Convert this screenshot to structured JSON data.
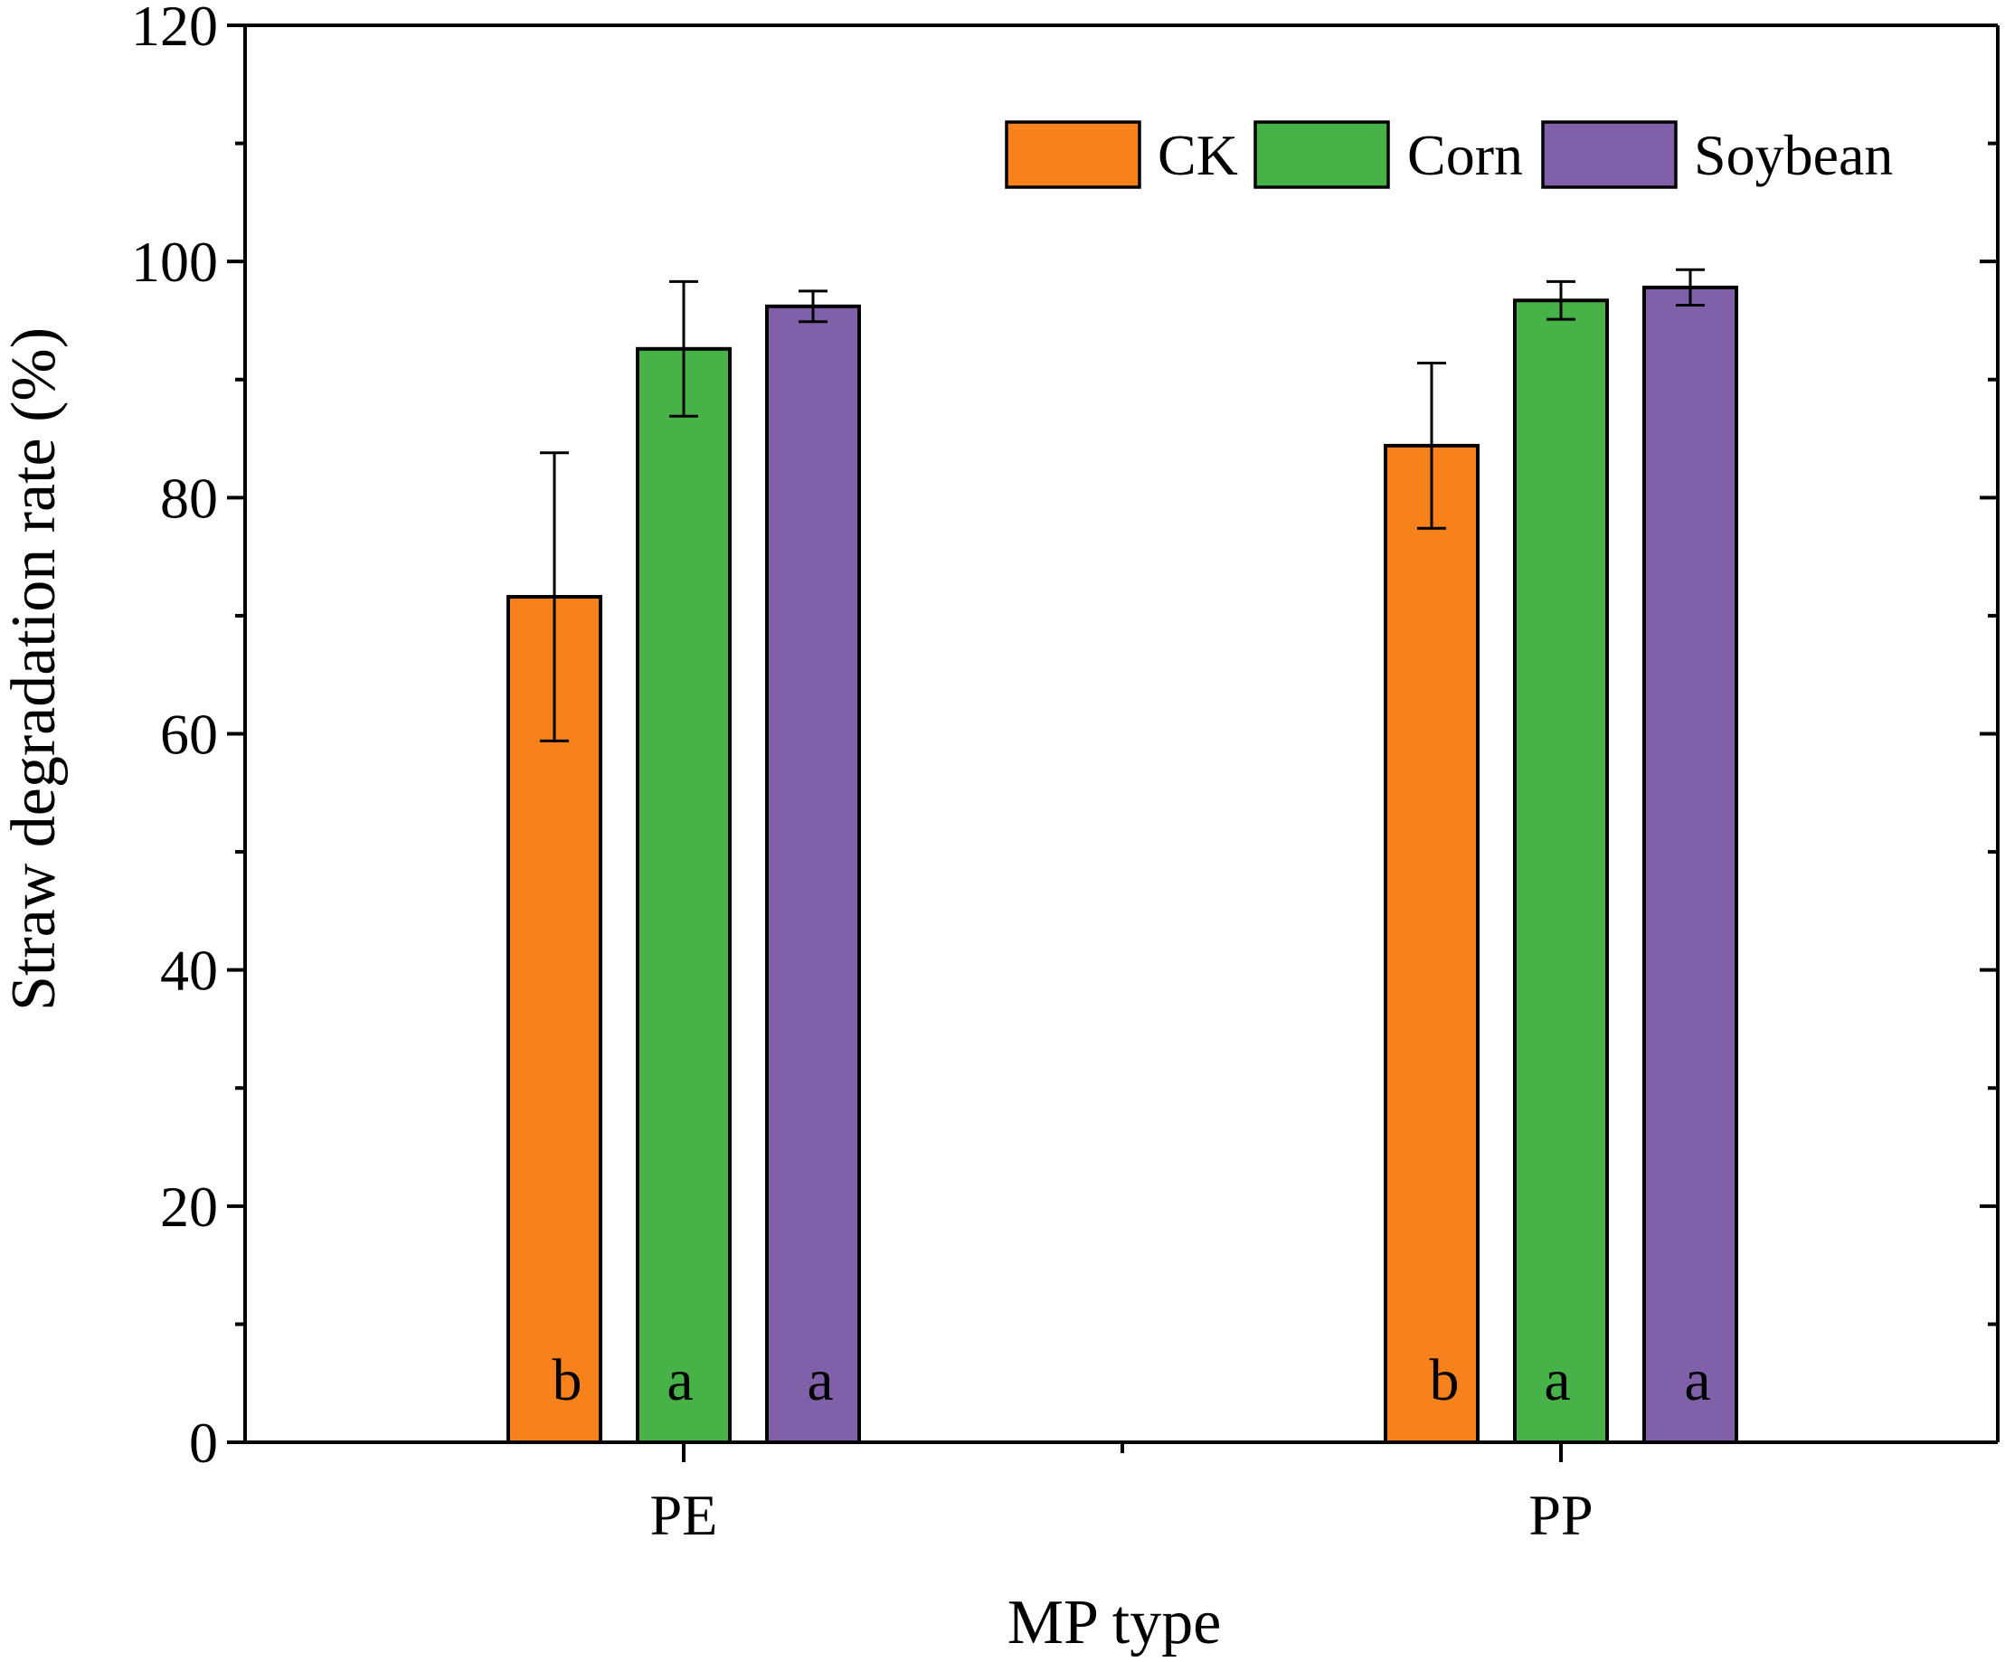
{
  "chart_data": {
    "type": "bar",
    "title": "",
    "xlabel": "MP type",
    "ylabel": "Straw degradation rate (%)",
    "ylim": [
      0,
      120
    ],
    "yticks": [
      0,
      20,
      40,
      60,
      80,
      100,
      120
    ],
    "yminor_step": 10,
    "categories": [
      "PE",
      "PP"
    ],
    "series": [
      {
        "name": "CK",
        "color": "#f7821b",
        "values": [
          71.6,
          84.4
        ],
        "errors": [
          12.2,
          7.0
        ],
        "letters": [
          "b",
          "b"
        ]
      },
      {
        "name": "Corn",
        "color": "#47b248",
        "values": [
          92.6,
          96.7
        ],
        "errors": [
          5.7,
          1.6
        ],
        "letters": [
          "a",
          "a"
        ]
      },
      {
        "name": "Soybean",
        "color": "#8060a8",
        "values": [
          96.2,
          97.8
        ],
        "errors": [
          1.3,
          1.5
        ],
        "letters": [
          "a",
          "a"
        ]
      }
    ],
    "legend_position": "top-right",
    "grid": false
  }
}
